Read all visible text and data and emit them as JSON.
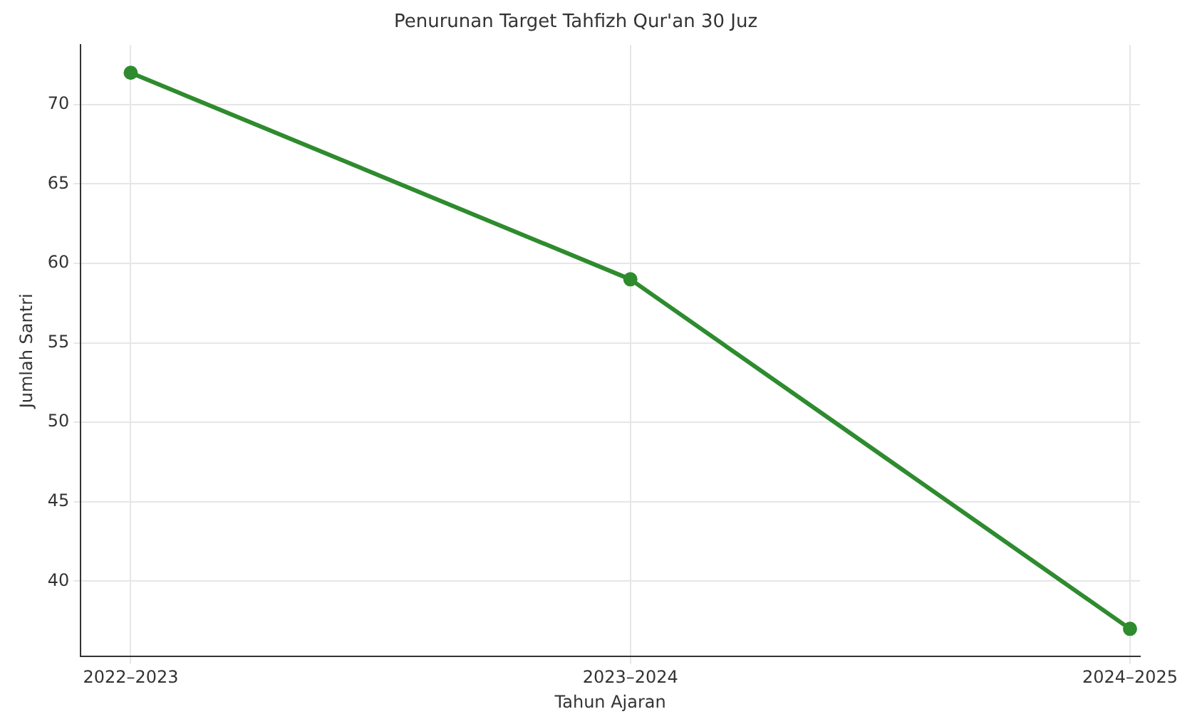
{
  "chart_data": {
    "type": "line",
    "title": "Penurunan Target Tahfizh Qur'an 30 Juz",
    "xlabel": "Tahun Ajaran",
    "ylabel": "Jumlah Santri",
    "categories": [
      "2022–2023",
      "2023–2024",
      "2024–2025"
    ],
    "series": [
      {
        "color": "#2e8b2e",
        "values": [
          72,
          59,
          37
        ]
      }
    ],
    "ylim": [
      35.25,
      73.75
    ],
    "yticks": [
      40,
      45,
      50,
      55,
      60,
      65,
      70
    ],
    "grid": true,
    "marker": "circle",
    "line_style": "solid"
  }
}
